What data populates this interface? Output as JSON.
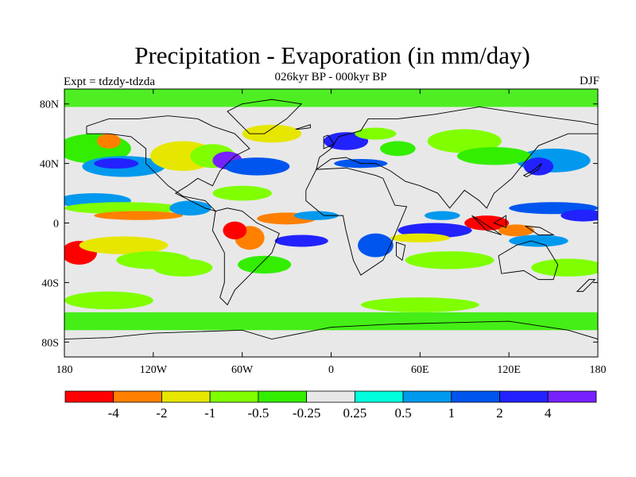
{
  "title": "Precipitation - Evaporation (in mm/day)",
  "subtitle": "026kyr BP - 000kyr BP",
  "experiment": "Expt = tdzdy-tdzda",
  "season": "DJF",
  "map": {
    "projection": "cylindrical-equidistant",
    "lon_range": [
      -180,
      180
    ],
    "lat_range": [
      -90,
      90
    ],
    "lon_ticks": [
      {
        "value": -180,
        "label": "180"
      },
      {
        "value": -120,
        "label": "120W"
      },
      {
        "value": -60,
        "label": "60W"
      },
      {
        "value": 0,
        "label": "0"
      },
      {
        "value": 60,
        "label": "60E"
      },
      {
        "value": 120,
        "label": "120E"
      },
      {
        "value": 180,
        "label": "180"
      }
    ],
    "lat_ticks": [
      {
        "value": 80,
        "label": "80N"
      },
      {
        "value": 40,
        "label": "40N"
      },
      {
        "value": 0,
        "label": "0"
      },
      {
        "value": -40,
        "label": "40S"
      },
      {
        "value": -80,
        "label": "80S"
      }
    ],
    "background_color": "#e8e8e8"
  },
  "colorbar": {
    "colors": [
      "#ff0000",
      "#ff8000",
      "#e6e600",
      "#80ff00",
      "#33ee00",
      "#e8e8e8",
      "#00ffdd",
      "#0099ee",
      "#0055ee",
      "#2222ff",
      "#7722ff"
    ],
    "labels": [
      "-4",
      "-2",
      "-1",
      "-0.5",
      "-0.25",
      "0.25",
      "0.5",
      "1",
      "2",
      "4"
    ]
  }
}
